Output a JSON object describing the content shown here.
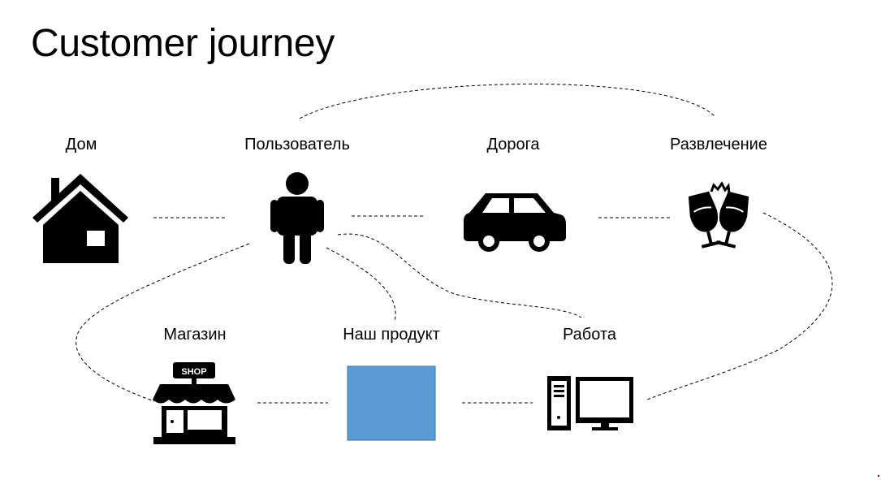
{
  "title": "Customer journey",
  "nodes": {
    "home": {
      "label": "Дом",
      "icon": "house-icon"
    },
    "user": {
      "label": "Пользователь",
      "icon": "person-icon"
    },
    "road": {
      "label": "Дорога",
      "icon": "car-icon"
    },
    "entertainment": {
      "label": "Развлечение",
      "icon": "champagne-glasses-icon"
    },
    "shop": {
      "label": "Магазин",
      "icon": "shop-icon",
      "sign_text": "SHOP"
    },
    "product": {
      "label": "Наш продукт",
      "icon": "blue-square"
    },
    "work": {
      "label": "Работа",
      "icon": "computer-icon"
    }
  },
  "colors": {
    "product_fill": "#5B9BD5",
    "product_border": "#41719C",
    "corner_mark": "#C00000"
  }
}
